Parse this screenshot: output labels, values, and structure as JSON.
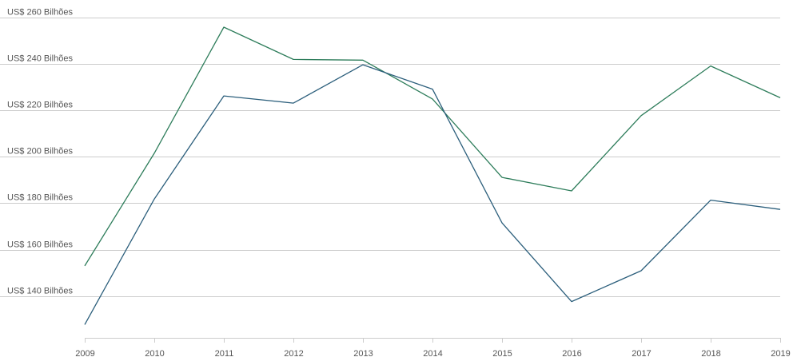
{
  "chart_data": {
    "type": "line",
    "title": "",
    "xlabel": "",
    "ylabel": "",
    "categories": [
      "2009",
      "2010",
      "2011",
      "2012",
      "2013",
      "2014",
      "2015",
      "2016",
      "2017",
      "2018",
      "2019"
    ],
    "ylim": [
      122,
      262
    ],
    "y_ticks": [
      {
        "value": 140,
        "label": "US$ 140 Bilhões"
      },
      {
        "value": 160,
        "label": "US$ 160 Bilhões"
      },
      {
        "value": 180,
        "label": "US$ 180 Bilhões"
      },
      {
        "value": 200,
        "label": "US$ 200 Bilhões"
      },
      {
        "value": 220,
        "label": "US$ 220 Bilhões"
      },
      {
        "value": 240,
        "label": "US$ 240 Bilhões"
      },
      {
        "value": 260,
        "label": "US$ 260 Bilhões"
      }
    ],
    "grid": true,
    "legend": "none",
    "series": [
      {
        "color": "#2e7d5b",
        "values": [
          153,
          201.5,
          255.8,
          241.9,
          241.6,
          224.9,
          191.1,
          185.3,
          217.7,
          239.1,
          225.4
        ]
      },
      {
        "color": "#2c5f7c",
        "values": [
          127.7,
          181.8,
          226.2,
          223.1,
          239.6,
          229.1,
          171.5,
          137.6,
          150.9,
          181.3,
          177.3
        ]
      }
    ]
  }
}
